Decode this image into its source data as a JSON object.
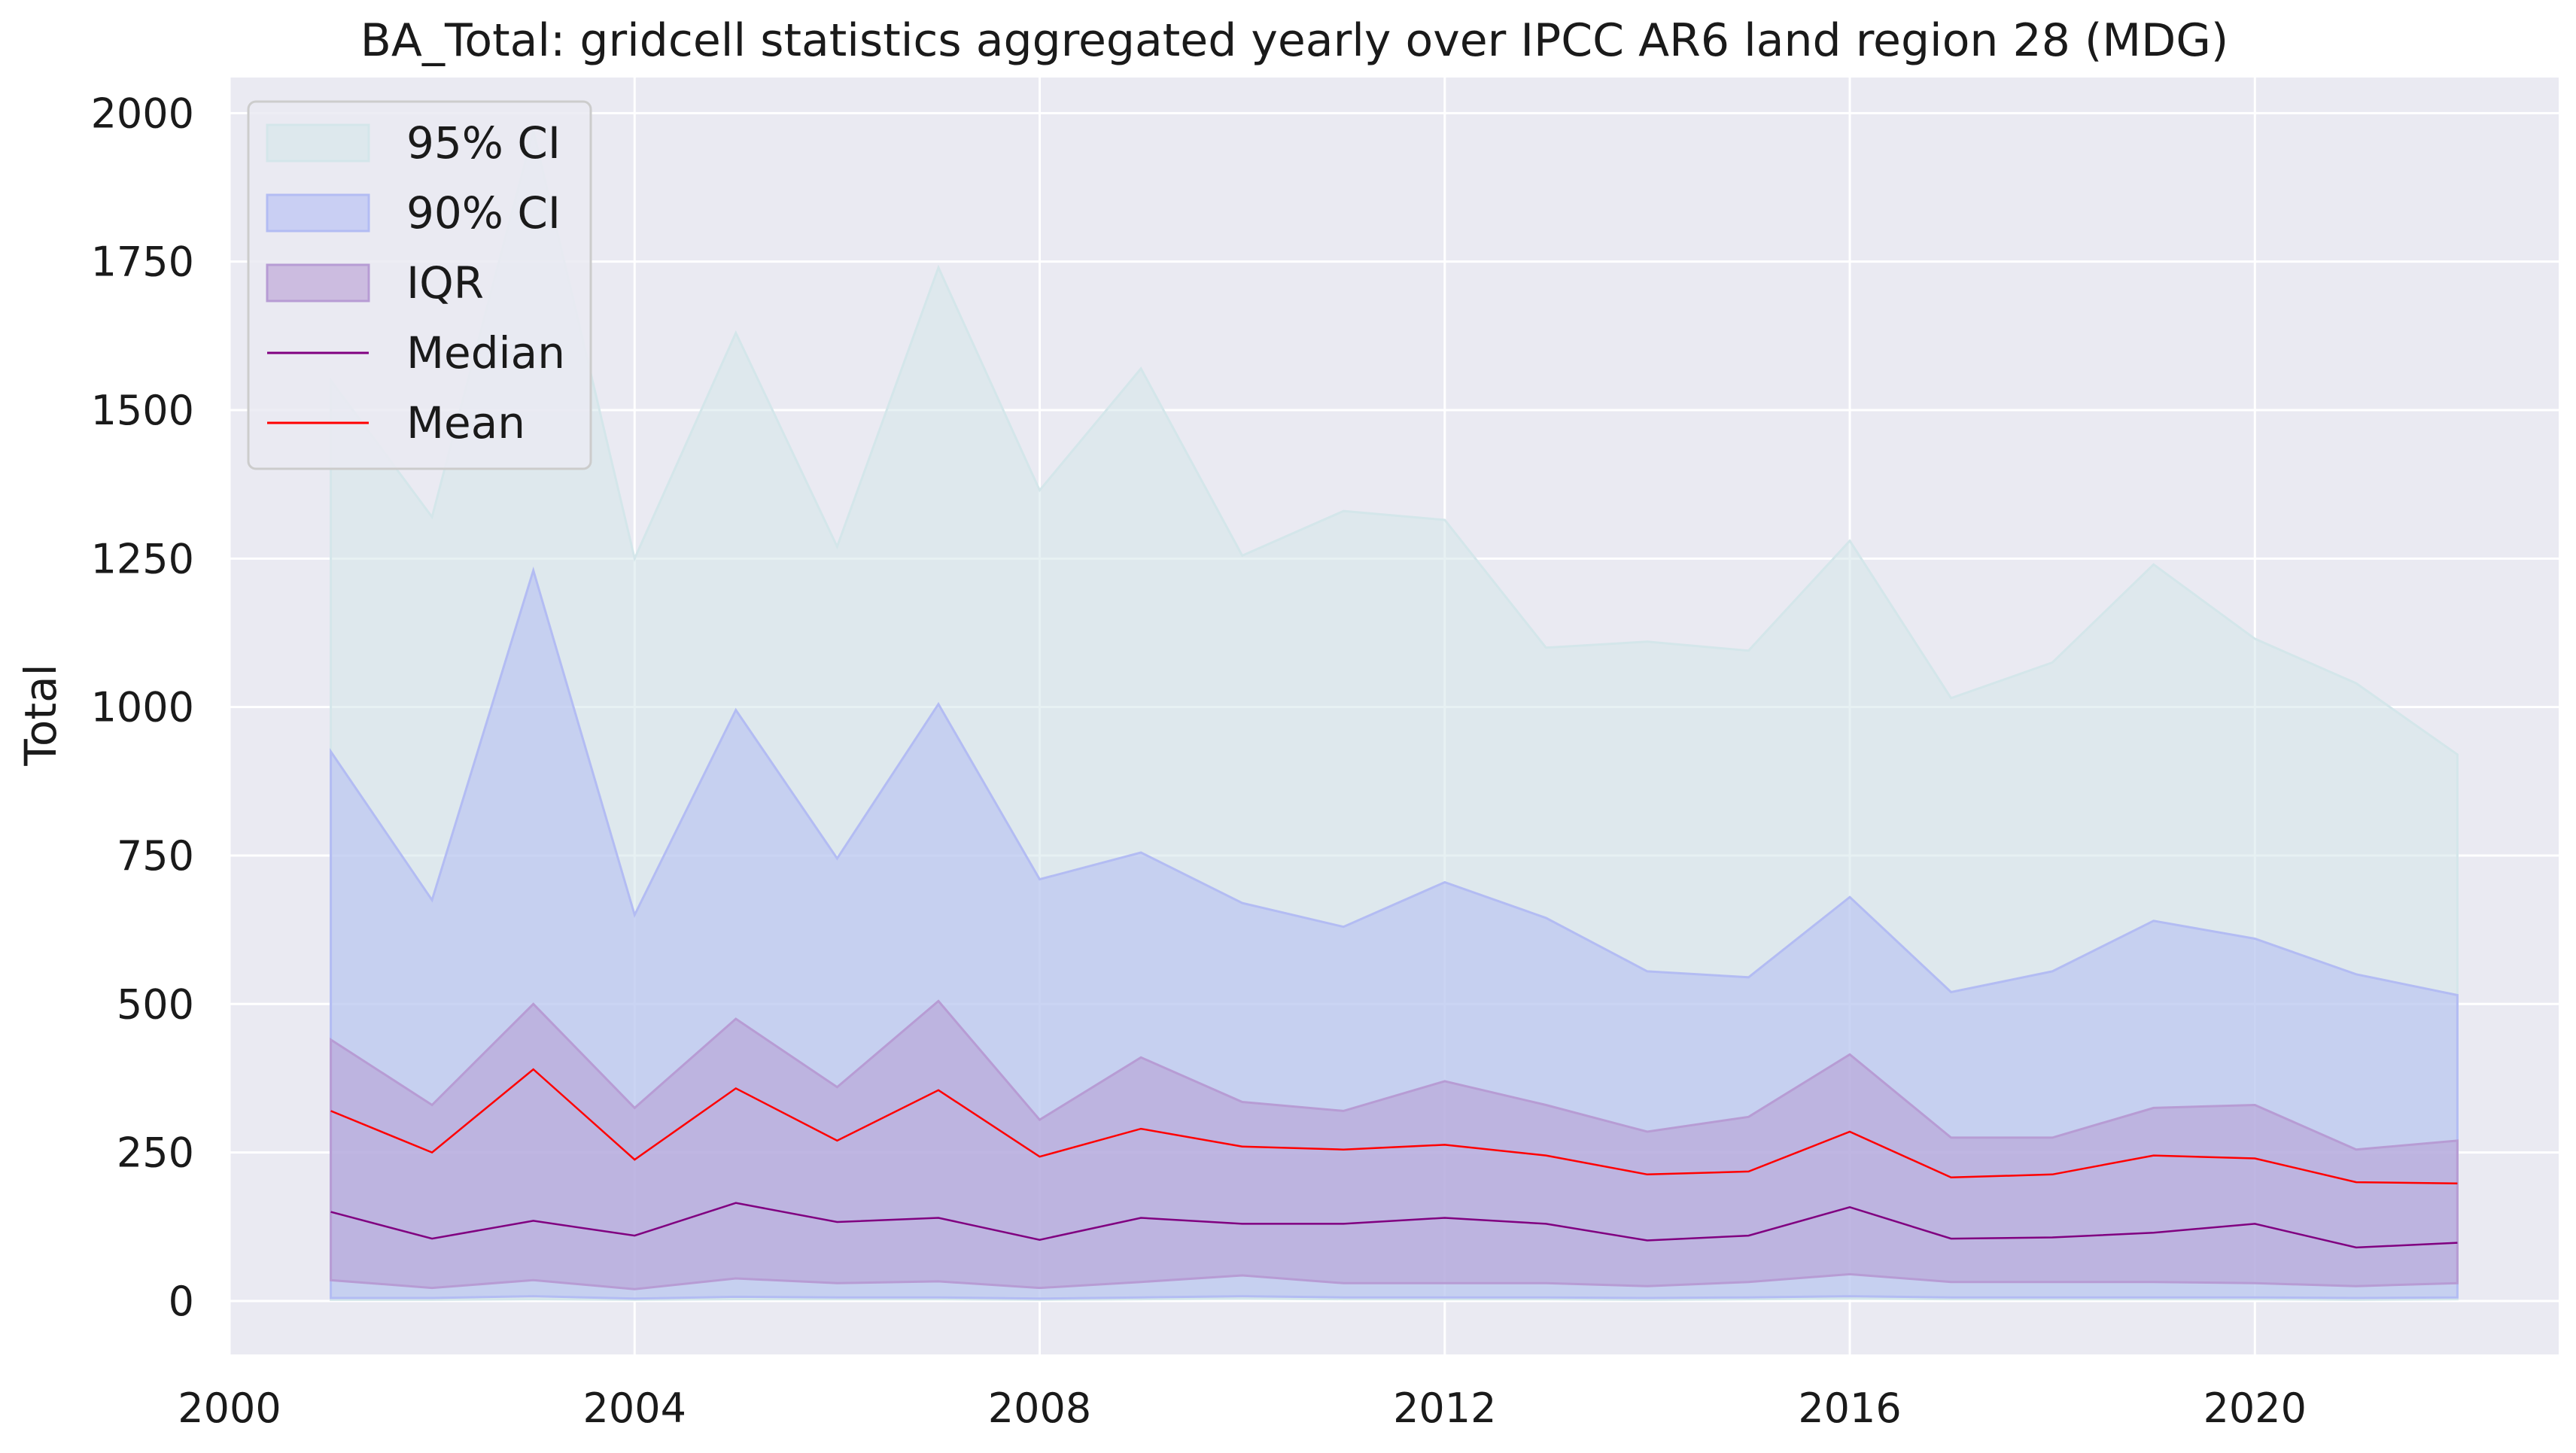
{
  "chart_data": {
    "type": "area",
    "title": "BA_Total: gridcell statistics aggregated yearly over IPCC AR6 land region 28 (MDG)",
    "xlabel": "",
    "ylabel": "Total",
    "xlim": [
      2000,
      2023
    ],
    "ylim": [
      -90,
      2060
    ],
    "x_ticks": [
      2000,
      2004,
      2008,
      2012,
      2016,
      2020
    ],
    "y_ticks": [
      0,
      250,
      500,
      750,
      1000,
      1250,
      1500,
      1750,
      2000
    ],
    "grid": true,
    "legend_position": "top-left",
    "x": [
      2001,
      2002,
      2003,
      2004,
      2005,
      2006,
      2007,
      2008,
      2009,
      2010,
      2011,
      2012,
      2013,
      2014,
      2015,
      2016,
      2017,
      2018,
      2019,
      2020,
      2021,
      2022
    ],
    "series": [
      {
        "name": "95% CI",
        "kind": "band",
        "color": "#d4e6ea",
        "lower": [
          2,
          2,
          3,
          2,
          3,
          3,
          3,
          2,
          3,
          4,
          3,
          3,
          3,
          2,
          3,
          4,
          3,
          3,
          3,
          3,
          2,
          3
        ],
        "upper": [
          1550,
          1320,
          1970,
          1250,
          1630,
          1270,
          1740,
          1365,
          1570,
          1255,
          1330,
          1315,
          1100,
          1110,
          1095,
          1280,
          1015,
          1075,
          1240,
          1115,
          1040,
          920
        ]
      },
      {
        "name": "90% CI",
        "kind": "band",
        "color": "#b3bcf3",
        "lower": [
          5,
          5,
          8,
          4,
          7,
          6,
          6,
          4,
          6,
          8,
          6,
          6,
          6,
          5,
          6,
          8,
          6,
          6,
          6,
          6,
          5,
          6
        ],
        "upper": [
          925,
          675,
          1230,
          650,
          995,
          745,
          1005,
          710,
          755,
          670,
          630,
          705,
          645,
          555,
          545,
          680,
          520,
          555,
          640,
          610,
          550,
          515
        ]
      },
      {
        "name": "IQR",
        "kind": "band",
        "color": "#b79cd4",
        "lower": [
          35,
          22,
          35,
          20,
          38,
          30,
          33,
          22,
          32,
          43,
          30,
          30,
          30,
          25,
          32,
          45,
          32,
          32,
          32,
          30,
          25,
          30
        ],
        "upper": [
          440,
          330,
          500,
          325,
          475,
          360,
          505,
          305,
          410,
          335,
          320,
          370,
          330,
          285,
          310,
          415,
          275,
          275,
          325,
          330,
          255,
          270
        ]
      },
      {
        "name": "Median",
        "kind": "line",
        "color": "#800080",
        "values": [
          150,
          105,
          135,
          110,
          165,
          133,
          140,
          103,
          140,
          130,
          130,
          140,
          130,
          102,
          110,
          158,
          105,
          107,
          115,
          130,
          90,
          98
        ]
      },
      {
        "name": "Mean",
        "kind": "line",
        "color": "#ff0000",
        "values": [
          320,
          250,
          390,
          238,
          358,
          270,
          355,
          243,
          290,
          260,
          255,
          263,
          245,
          213,
          218,
          285,
          208,
          213,
          245,
          240,
          200,
          198
        ]
      }
    ]
  }
}
